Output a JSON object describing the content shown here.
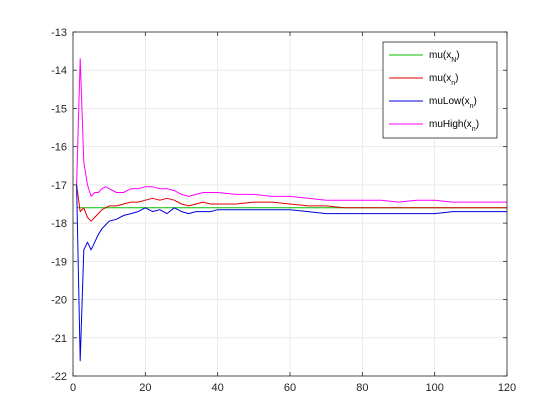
{
  "chart_data": {
    "type": "line",
    "title": "",
    "xlabel": "",
    "ylabel": "",
    "xlim": [
      0,
      120
    ],
    "ylim": [
      -22,
      -13
    ],
    "xticks": [
      0,
      20,
      40,
      60,
      80,
      100,
      120
    ],
    "yticks": [
      -22,
      -21,
      -20,
      -19,
      -18,
      -17,
      -16,
      -15,
      -14,
      -13
    ],
    "xtick_labels": [
      "0",
      "20",
      "40",
      "60",
      "80",
      "100",
      "120"
    ],
    "ytick_labels": [
      "-22",
      "-21",
      "-20",
      "-19",
      "-18",
      "-17",
      "-16",
      "-15",
      "-14",
      "-13"
    ],
    "grid": true,
    "legend": "top-right",
    "series": [
      {
        "name": "mu(x_N)",
        "label_main": "mu(x",
        "label_sub": "N",
        "label_end": ")",
        "color": "#00c000",
        "x": [
          1,
          120
        ],
        "y": [
          -17.6,
          -17.6
        ]
      },
      {
        "name": "mu(x_n)",
        "label_main": "mu(x",
        "label_sub": "n",
        "label_end": ")",
        "color": "#e00000",
        "x": [
          1,
          2,
          3,
          4,
          5,
          6,
          7,
          8,
          9,
          10,
          12,
          14,
          16,
          18,
          20,
          22,
          24,
          26,
          28,
          30,
          32,
          34,
          36,
          38,
          40,
          45,
          50,
          55,
          60,
          65,
          70,
          75,
          80,
          85,
          90,
          95,
          100,
          105,
          110,
          115,
          120
        ],
        "y": [
          -17.0,
          -17.7,
          -17.6,
          -17.85,
          -17.95,
          -17.85,
          -17.75,
          -17.65,
          -17.6,
          -17.55,
          -17.55,
          -17.5,
          -17.45,
          -17.45,
          -17.4,
          -17.35,
          -17.4,
          -17.35,
          -17.4,
          -17.5,
          -17.55,
          -17.5,
          -17.45,
          -17.5,
          -17.5,
          -17.5,
          -17.45,
          -17.45,
          -17.5,
          -17.55,
          -17.55,
          -17.6,
          -17.6,
          -17.6,
          -17.6,
          -17.6,
          -17.6,
          -17.6,
          -17.6,
          -17.6,
          -17.6
        ]
      },
      {
        "name": "muLow(x_n)",
        "label_main": "muLow(x",
        "label_sub": "n",
        "label_end": ")",
        "color": "#0000e0",
        "x": [
          1,
          2,
          3,
          4,
          5,
          6,
          7,
          8,
          9,
          10,
          12,
          14,
          16,
          18,
          20,
          22,
          24,
          26,
          28,
          30,
          32,
          34,
          36,
          38,
          40,
          45,
          50,
          55,
          60,
          65,
          70,
          75,
          80,
          85,
          90,
          95,
          100,
          105,
          110,
          115,
          120
        ],
        "y": [
          -17.0,
          -21.6,
          -18.7,
          -18.5,
          -18.7,
          -18.5,
          -18.3,
          -18.15,
          -18.05,
          -17.95,
          -17.9,
          -17.8,
          -17.75,
          -17.7,
          -17.6,
          -17.7,
          -17.65,
          -17.75,
          -17.6,
          -17.7,
          -17.75,
          -17.7,
          -17.7,
          -17.7,
          -17.65,
          -17.65,
          -17.65,
          -17.65,
          -17.65,
          -17.7,
          -17.75,
          -17.75,
          -17.75,
          -17.75,
          -17.75,
          -17.75,
          -17.75,
          -17.7,
          -17.7,
          -17.7,
          -17.7
        ]
      },
      {
        "name": "muHigh(x_n)",
        "label_main": "muHigh(x",
        "label_sub": "n",
        "label_end": ")",
        "color": "#ff00ff",
        "x": [
          1,
          2,
          3,
          4,
          5,
          6,
          7,
          8,
          9,
          10,
          12,
          14,
          16,
          18,
          20,
          22,
          24,
          26,
          28,
          30,
          32,
          34,
          36,
          38,
          40,
          45,
          50,
          55,
          60,
          65,
          70,
          75,
          80,
          85,
          90,
          95,
          100,
          105,
          110,
          115,
          120
        ],
        "y": [
          -17.0,
          -13.7,
          -16.4,
          -17.0,
          -17.3,
          -17.2,
          -17.2,
          -17.1,
          -17.05,
          -17.1,
          -17.2,
          -17.2,
          -17.1,
          -17.1,
          -17.05,
          -17.05,
          -17.1,
          -17.1,
          -17.15,
          -17.25,
          -17.3,
          -17.25,
          -17.2,
          -17.2,
          -17.2,
          -17.25,
          -17.25,
          -17.3,
          -17.3,
          -17.35,
          -17.4,
          -17.4,
          -17.4,
          -17.4,
          -17.45,
          -17.4,
          -17.4,
          -17.45,
          -17.45,
          -17.45,
          -17.45
        ]
      }
    ]
  }
}
